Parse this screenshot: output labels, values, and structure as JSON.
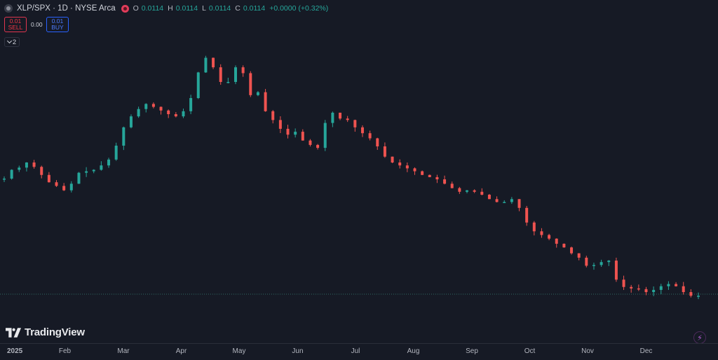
{
  "header": {
    "title": "XLP/SPX · 1D · NYSE Arca",
    "ohlc": [
      {
        "k": "O",
        "v": "0.0114"
      },
      {
        "k": "H",
        "v": "0.0114"
      },
      {
        "k": "L",
        "v": "0.0114"
      },
      {
        "k": "C",
        "v": "0.0114"
      },
      {
        "k": "",
        "v": "+0.0000 (+0.32%)"
      }
    ]
  },
  "trade": {
    "sell_price": "0.01",
    "sell_label": "SELL",
    "spread": "0.00",
    "buy_price": "0.01",
    "buy_label": "BUY"
  },
  "indicators_toggle": "2",
  "brand": "TradingView",
  "colors": {
    "up": "#26a69a",
    "down": "#ef5350",
    "background": "#161a25"
  },
  "chart_data": {
    "type": "candlestick",
    "title": "XLP/SPX · 1D · NYSE Arca",
    "x_tick_labels": [
      "2025",
      "Feb",
      "Mar",
      "Apr",
      "May",
      "Jun",
      "Jul",
      "Aug",
      "Sep",
      "Oct",
      "Nov",
      "Dec"
    ],
    "x_tick_fractions": [
      0.0,
      0.083,
      0.167,
      0.25,
      0.333,
      0.417,
      0.5,
      0.583,
      0.667,
      0.75,
      0.833,
      0.917
    ],
    "last_value": 0.0114,
    "last_value_line": "dotted",
    "trend_closes": [
      0.013,
      0.01312,
      0.01315,
      0.01322,
      0.01316,
      0.01305,
      0.01295,
      0.0129,
      0.01284,
      0.01293,
      0.01308,
      0.0131,
      0.01312,
      0.01318,
      0.01326,
      0.01345,
      0.0137,
      0.01385,
      0.01395,
      0.01402,
      0.01398,
      0.01393,
      0.01388,
      0.01385,
      0.01392,
      0.0141,
      0.01445,
      0.01465,
      0.01452,
      0.01432,
      0.01432,
      0.01452,
      0.01444,
      0.01414,
      0.01418,
      0.01392,
      0.0138,
      0.01368,
      0.0136,
      0.01364,
      0.01352,
      0.01346,
      0.01342,
      0.01376,
      0.0139,
      0.01382,
      0.0138,
      0.0137,
      0.01362,
      0.01355,
      0.01344,
      0.0133,
      0.01322,
      0.01318,
      0.01314,
      0.0131,
      0.01305,
      0.01302,
      0.01299,
      0.01293,
      0.01287,
      0.01282,
      0.01284,
      0.01282,
      0.01278,
      0.01272,
      0.01268,
      0.01268,
      0.01272,
      0.0126,
      0.0124,
      0.01228,
      0.01223,
      0.01218,
      0.01211,
      0.01206,
      0.01198,
      0.01192,
      0.01181,
      0.01182,
      0.01186,
      0.01188,
      0.01162,
      0.01152,
      0.0115,
      0.01149,
      0.01145,
      0.01148,
      0.01153,
      0.01156,
      0.01153,
      0.01145,
      0.0114,
      0.0114
    ]
  }
}
